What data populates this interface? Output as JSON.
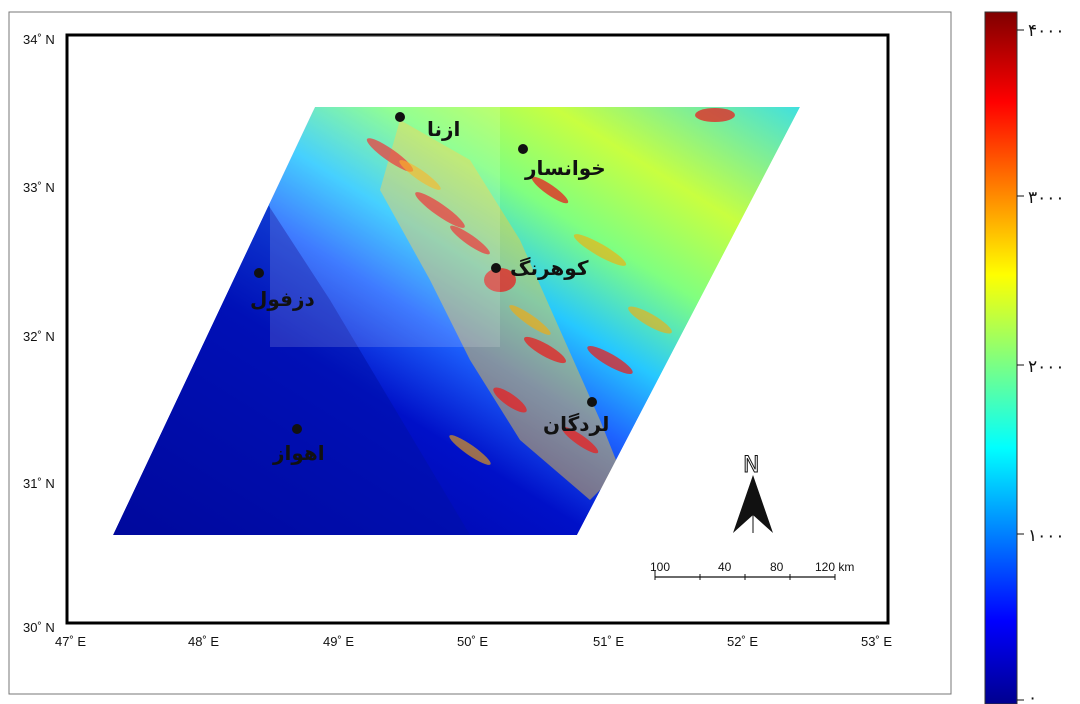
{
  "axes": {
    "y_ticks": [
      "34˚ N",
      "33˚ N",
      "32˚ N",
      "31˚ N",
      "30˚ N"
    ],
    "x_ticks": [
      "47˚ E",
      "48˚ E",
      "49˚ E",
      "50˚ E",
      "51˚ E",
      "52˚ E",
      "53˚ E"
    ]
  },
  "cities": [
    {
      "name": "ازنا"
    },
    {
      "name": "خوانسار"
    },
    {
      "name": "کوهرنگ"
    },
    {
      "name": "دزفول"
    },
    {
      "name": "لردگان"
    },
    {
      "name": "اهواز"
    }
  ],
  "north_arrow": {
    "label": "N"
  },
  "scale_bar": {
    "labels": [
      "100",
      "40",
      "80",
      "120 km"
    ]
  },
  "colorbar": {
    "ticks": [
      "۴۰۰۰",
      "۳۰۰۰",
      "۲۰۰۰",
      "۱۰۰۰",
      "۰"
    ],
    "colors": [
      "#00008f",
      "#0000ff",
      "#00ffff",
      "#ffff00",
      "#ff0000",
      "#800000"
    ]
  },
  "colors": {
    "low": "#00008f",
    "mid": "#00ffff",
    "high": "#ff0000"
  }
}
